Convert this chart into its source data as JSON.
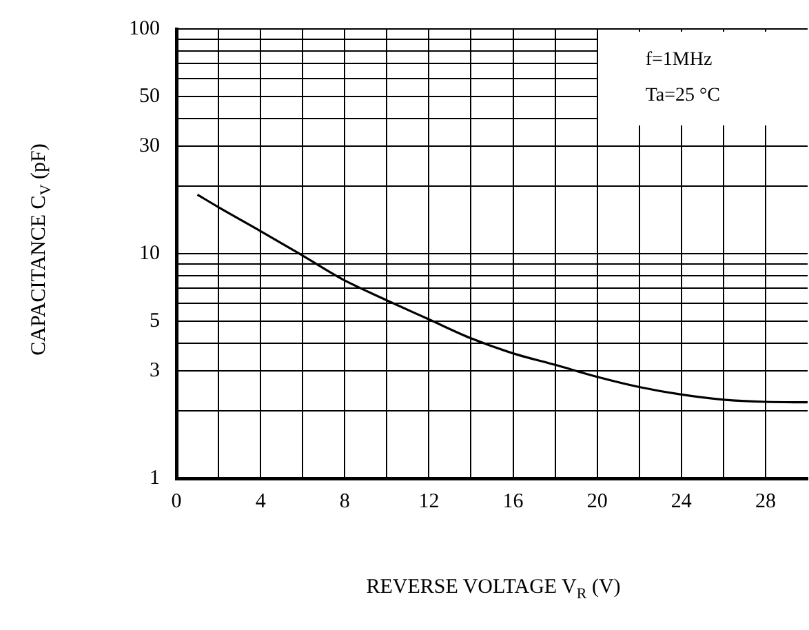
{
  "chart_data": {
    "type": "line",
    "xlabel": "REVERSE VOLTAGE V$_{R}$  (V)",
    "ylabel": "CAPACITANCE C$_{V}$  (pF)",
    "annotations": [
      "f=1MHz",
      "Ta=25 °C"
    ],
    "x": [
      1,
      2,
      4,
      6,
      8,
      10,
      12,
      14,
      16,
      18,
      20,
      22,
      24,
      26,
      28,
      30
    ],
    "values": [
      18.3,
      16.1,
      12.6,
      9.8,
      7.6,
      6.2,
      5.1,
      4.2,
      3.6,
      3.2,
      2.83,
      2.55,
      2.36,
      2.24,
      2.19,
      2.18
    ],
    "color": "#000000",
    "marker": "none",
    "log": "y",
    "grid": true,
    "xlim": [
      0,
      30
    ],
    "xticks": [
      0,
      {
        "value": 2,
        "label": null
      },
      4,
      {
        "value": 6,
        "label": null
      },
      8,
      {
        "value": 10,
        "label": null
      },
      12,
      {
        "value": 14,
        "label": null
      },
      16,
      {
        "value": 18,
        "label": null
      },
      20,
      {
        "value": 22,
        "label": null
      },
      24,
      {
        "value": 26,
        "label": null
      },
      28
    ],
    "ylim": [
      1,
      100
    ],
    "yticks": [
      1,
      {
        "value": 2,
        "label": null
      },
      3,
      {
        "value": 4,
        "label": null
      },
      5,
      {
        "value": 6,
        "label": null
      },
      {
        "value": 7,
        "label": null
      },
      {
        "value": 8,
        "label": null
      },
      {
        "value": 9,
        "label": null
      },
      10,
      {
        "value": 20,
        "label": null
      },
      30,
      {
        "value": 40,
        "label": null
      },
      50,
      {
        "value": 60,
        "label": null
      },
      {
        "value": 70,
        "label": null
      },
      {
        "value": 80,
        "label": null
      },
      {
        "value": 90,
        "label": null
      },
      100
    ]
  }
}
